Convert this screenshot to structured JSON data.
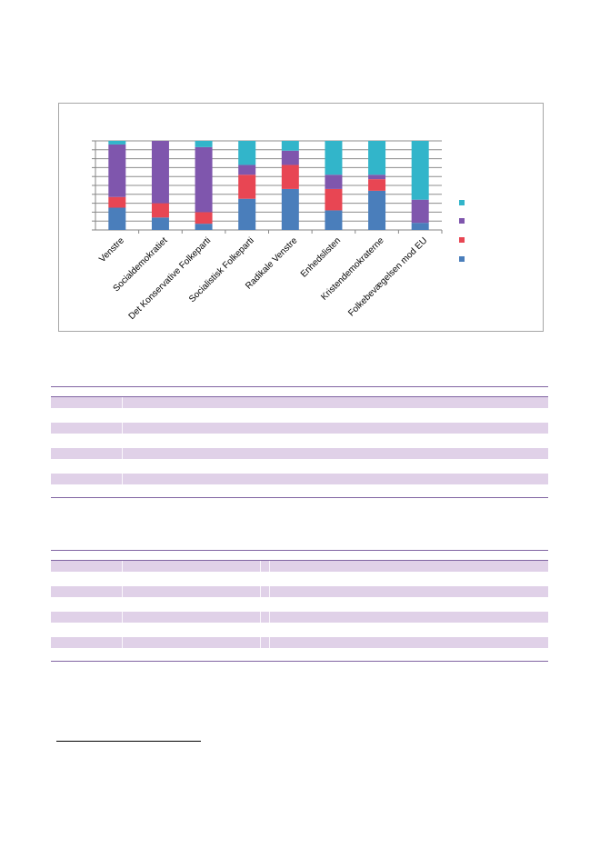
{
  "chart_data": {
    "type": "bar",
    "stacked": true,
    "percent": true,
    "categories": [
      "Venstre",
      "Socialdemokratiet",
      "Det Konservative Folkeparti",
      "Socialistisk Folkeparti",
      "Radikale Venstre",
      "Enhedslisten",
      "Kristendemokraterne",
      "Folkebevægelsen mod EU"
    ],
    "series": [
      {
        "color": "#4a7ebb",
        "values": [
          25,
          14,
          7,
          35,
          46,
          22,
          44,
          8
        ]
      },
      {
        "color": "#e84653",
        "values": [
          12,
          16,
          13,
          27,
          27,
          24,
          13,
          0
        ]
      },
      {
        "color": "#7f56ad",
        "values": [
          59,
          70,
          73,
          11,
          16,
          16,
          5,
          26
        ]
      },
      {
        "color": "#32b5ca",
        "values": [
          4,
          0,
          7,
          27,
          11,
          38,
          38,
          66
        ]
      }
    ],
    "ylim": [
      0,
      100
    ],
    "grid": true,
    "legend": "right"
  },
  "tables": [
    {
      "rows": 4
    },
    {
      "rows": 4
    }
  ]
}
